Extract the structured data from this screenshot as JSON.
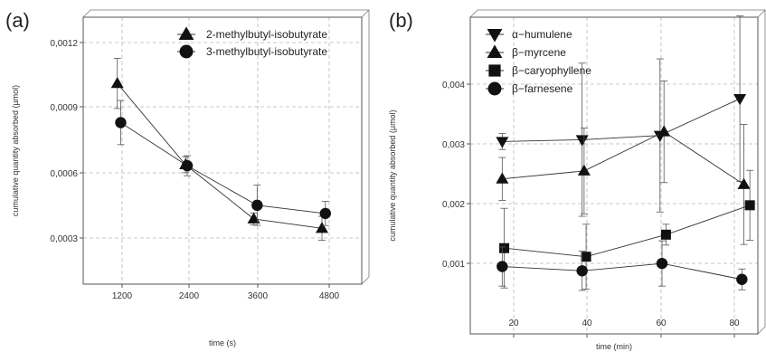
{
  "chart_data": [
    {
      "type": "line",
      "panel_label": "(a)",
      "xlabel": "time (s)",
      "ylabel": "cumulative quantity absorbed (µmol)",
      "x_ticks": [
        "1200",
        "2400",
        "3600",
        "4800"
      ],
      "y_ticks": [
        "0,0003",
        "0,0006",
        "0,0009",
        "0,0012"
      ],
      "xlim": [
        600,
        5500
      ],
      "ylim": [
        0.0,
        0.00133
      ],
      "grid": true,
      "legend_position": "top-right",
      "series": [
        {
          "name": "2-methylbutyl-isobutyrate",
          "marker": "triangle-up",
          "x": [
            1200,
            2400,
            3600,
            4800
          ],
          "y": [
            0.001,
            0.000595,
            0.000325,
            0.000278
          ],
          "err": [
            0.000125,
            4e-05,
            3e-05,
            6e-05
          ]
        },
        {
          "name": "3-methylbutyl-isobutyrate",
          "marker": "circle",
          "x": [
            1260,
            2430,
            3660,
            4860
          ],
          "y": [
            0.000805,
            0.00059,
            0.000393,
            0.000352
          ],
          "err": [
            0.00011,
            5e-05,
            0.0001,
            6e-05
          ]
        }
      ]
    },
    {
      "type": "line",
      "panel_label": "(b)",
      "xlabel": "time (min)",
      "ylabel": "cumulative quantity absorbed (µmol)",
      "x_ticks": [
        "20",
        "40",
        "60",
        "80"
      ],
      "y_ticks": [
        "0,001",
        "0,002",
        "0,003",
        "0,004"
      ],
      "xlim": [
        12,
        84
      ],
      "ylim": [
        -0.00062,
        0.00455
      ],
      "grid": true,
      "legend_position": "top-left",
      "series": [
        {
          "name": "α−humulene",
          "marker": "triangle-down",
          "x": [
            20,
            40,
            59.5,
            79.5
          ],
          "y": [
            0.00252,
            0.00255,
            0.00262,
            0.00322
          ],
          "err": [
            0.00013,
            0.00125,
            0.00125,
            0.00135
          ]
        },
        {
          "name": "β−myrcene",
          "marker": "triangle-up",
          "x": [
            20,
            40.5,
            60.5,
            80.5
          ],
          "y": [
            0.00191,
            0.00204,
            0.00268,
            0.00182
          ],
          "err": [
            0.00035,
            0.0007,
            0.00083,
            0.00098
          ]
        },
        {
          "name": "β−caryophyllene",
          "marker": "square",
          "x": [
            20.5,
            41,
            61,
            82
          ],
          "y": [
            0.00078,
            0.00064,
            0.001,
            0.00148
          ],
          "err": [
            0.00065,
            0.00053,
            0.00017,
            0.00057
          ]
        },
        {
          "name": "β−farnesene",
          "marker": "circle",
          "x": [
            20,
            40,
            60,
            80
          ],
          "y": [
            0.00048,
            0.00041,
            0.00053,
            0.00027
          ],
          "err": [
            0.00032,
            0.00032,
            0.00037,
            0.00017
          ]
        }
      ]
    }
  ]
}
